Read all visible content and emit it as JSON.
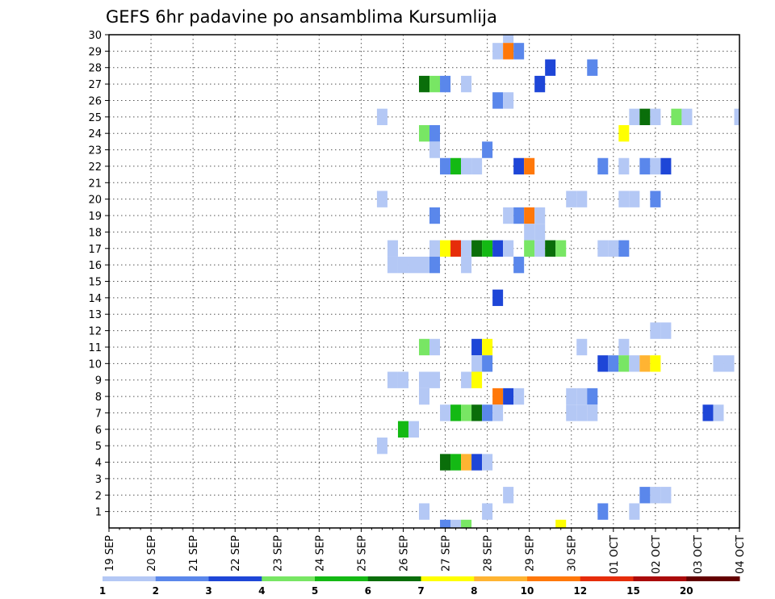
{
  "chart_data": {
    "type": "heatmap",
    "title": "GEFS 6hr padavine po ansamblima Kursumlija",
    "xlabel": "",
    "ylabel": "",
    "x_tick_labels": [
      "19 SEP",
      "20 SEP",
      "21 SEP",
      "22 SEP",
      "23 SEP",
      "24 SEP",
      "25 SEP",
      "26 SEP",
      "27 SEP",
      "28 SEP",
      "29 SEP",
      "30 SEP",
      "01 OCT",
      "02 OCT",
      "03 OCT",
      "04 OCT"
    ],
    "y_tick_labels": [
      "1",
      "2",
      "3",
      "4",
      "5",
      "6",
      "7",
      "8",
      "9",
      "10",
      "11",
      "12",
      "13",
      "14",
      "15",
      "16",
      "17",
      "18",
      "19",
      "20",
      "21",
      "22",
      "23",
      "24",
      "25",
      "26",
      "27",
      "28",
      "29",
      "30"
    ],
    "xlim": [
      0,
      60
    ],
    "ylim": [
      0,
      30
    ],
    "steps_per_day": 4,
    "grid": true,
    "colorbar": {
      "levels": [
        "1",
        "2",
        "3",
        "4",
        "5",
        "6",
        "7",
        "8",
        "10",
        "12",
        "15",
        "20"
      ],
      "colors": [
        "#b4c8f5",
        "#5a87eb",
        "#1e46d7",
        "#78e664",
        "#14b914",
        "#0a6e0a",
        "#ffff00",
        "#ffb432",
        "#ff780a",
        "#e62d0a",
        "#aa0a0a",
        "#640000"
      ]
    },
    "cells": [
      [
        38,
        30,
        1
      ],
      [
        37,
        29,
        1
      ],
      [
        38,
        29,
        9
      ],
      [
        39,
        29,
        2
      ],
      [
        42,
        28,
        3
      ],
      [
        46,
        28,
        2
      ],
      [
        30,
        27,
        6
      ],
      [
        31,
        27,
        4
      ],
      [
        32,
        27,
        2
      ],
      [
        34,
        27,
        1
      ],
      [
        41,
        27,
        3
      ],
      [
        37,
        26,
        2
      ],
      [
        38,
        26,
        1
      ],
      [
        26,
        25,
        1
      ],
      [
        50,
        25,
        1
      ],
      [
        51,
        25,
        6
      ],
      [
        52,
        25,
        1
      ],
      [
        54,
        25,
        4
      ],
      [
        55,
        25,
        1
      ],
      [
        60,
        25,
        1
      ],
      [
        30,
        24,
        4
      ],
      [
        31,
        24,
        2
      ],
      [
        49,
        24,
        7
      ],
      [
        31,
        23,
        1
      ],
      [
        36,
        23,
        2
      ],
      [
        32,
        22,
        2
      ],
      [
        33,
        22,
        5
      ],
      [
        34,
        22,
        1
      ],
      [
        35,
        22,
        1
      ],
      [
        39,
        22,
        3
      ],
      [
        40,
        22,
        9
      ],
      [
        47,
        22,
        2
      ],
      [
        49,
        22,
        1
      ],
      [
        51,
        22,
        2
      ],
      [
        52,
        22,
        1
      ],
      [
        53,
        22,
        3
      ],
      [
        26,
        20,
        1
      ],
      [
        44,
        20,
        1
      ],
      [
        45,
        20,
        1
      ],
      [
        49,
        20,
        1
      ],
      [
        50,
        20,
        1
      ],
      [
        52,
        20,
        2
      ],
      [
        31,
        19,
        2
      ],
      [
        38,
        19,
        1
      ],
      [
        39,
        19,
        2
      ],
      [
        40,
        19,
        9
      ],
      [
        41,
        19,
        1
      ],
      [
        40,
        18,
        1
      ],
      [
        41,
        18,
        1
      ],
      [
        27,
        17,
        1
      ],
      [
        31,
        17,
        1
      ],
      [
        32,
        17,
        7
      ],
      [
        33,
        17,
        10
      ],
      [
        34,
        17,
        1
      ],
      [
        35,
        17,
        6
      ],
      [
        36,
        17,
        5
      ],
      [
        37,
        17,
        3
      ],
      [
        38,
        17,
        1
      ],
      [
        40,
        17,
        4
      ],
      [
        41,
        17,
        1
      ],
      [
        42,
        17,
        6
      ],
      [
        43,
        17,
        4
      ],
      [
        47,
        17,
        1
      ],
      [
        48,
        17,
        1
      ],
      [
        49,
        17,
        2
      ],
      [
        27,
        16,
        1
      ],
      [
        28,
        16,
        1
      ],
      [
        29,
        16,
        1
      ],
      [
        30,
        16,
        1
      ],
      [
        31,
        16,
        2
      ],
      [
        34,
        16,
        1
      ],
      [
        39,
        16,
        2
      ],
      [
        37,
        14,
        3
      ],
      [
        52,
        12,
        1
      ],
      [
        53,
        12,
        1
      ],
      [
        30,
        11,
        4
      ],
      [
        31,
        11,
        1
      ],
      [
        35,
        11,
        3
      ],
      [
        36,
        11,
        7
      ],
      [
        45,
        11,
        1
      ],
      [
        49,
        11,
        1
      ],
      [
        35,
        10,
        1
      ],
      [
        36,
        10,
        2
      ],
      [
        47,
        10,
        3
      ],
      [
        48,
        10,
        2
      ],
      [
        49,
        10,
        4
      ],
      [
        50,
        10,
        1
      ],
      [
        51,
        10,
        8
      ],
      [
        52,
        10,
        7
      ],
      [
        58,
        10,
        1
      ],
      [
        59,
        10,
        1
      ],
      [
        27,
        9,
        1
      ],
      [
        28,
        9,
        1
      ],
      [
        30,
        9,
        1
      ],
      [
        31,
        9,
        1
      ],
      [
        34,
        9,
        1
      ],
      [
        35,
        9,
        7
      ],
      [
        30,
        8,
        1
      ],
      [
        37,
        8,
        9
      ],
      [
        38,
        8,
        3
      ],
      [
        39,
        8,
        1
      ],
      [
        44,
        8,
        1
      ],
      [
        45,
        8,
        1
      ],
      [
        46,
        8,
        2
      ],
      [
        32,
        7,
        1
      ],
      [
        33,
        7,
        5
      ],
      [
        34,
        7,
        4
      ],
      [
        35,
        7,
        6
      ],
      [
        36,
        7,
        2
      ],
      [
        37,
        7,
        1
      ],
      [
        44,
        7,
        1
      ],
      [
        45,
        7,
        1
      ],
      [
        46,
        7,
        1
      ],
      [
        57,
        7,
        3
      ],
      [
        58,
        7,
        1
      ],
      [
        28,
        6,
        5
      ],
      [
        29,
        6,
        1
      ],
      [
        26,
        5,
        1
      ],
      [
        32,
        4,
        6
      ],
      [
        33,
        4,
        5
      ],
      [
        34,
        4,
        8
      ],
      [
        35,
        4,
        3
      ],
      [
        36,
        4,
        1
      ],
      [
        38,
        2,
        1
      ],
      [
        51,
        2,
        2
      ],
      [
        52,
        2,
        1
      ],
      [
        53,
        2,
        1
      ],
      [
        30,
        1,
        1
      ],
      [
        36,
        1,
        1
      ],
      [
        47,
        1,
        2
      ],
      [
        50,
        1,
        1
      ],
      [
        32,
        0,
        2
      ],
      [
        33,
        0,
        1
      ],
      [
        34,
        0,
        4
      ],
      [
        43,
        0,
        7
      ]
    ]
  }
}
